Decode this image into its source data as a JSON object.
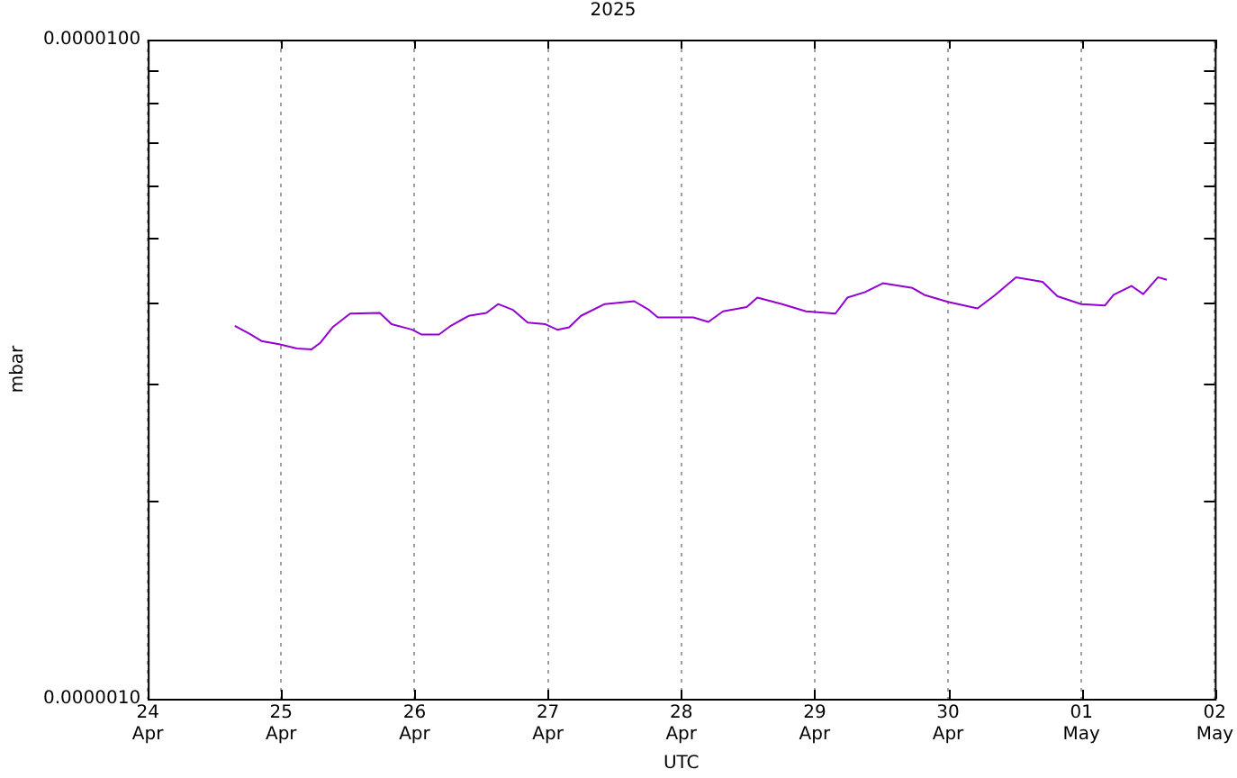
{
  "chart_data": {
    "type": "line",
    "title": "2025",
    "xlabel": "UTC",
    "ylabel": "mbar",
    "log": "y",
    "grid": "x",
    "legend": false,
    "marker": "none",
    "line_style": "solid",
    "xlim": [
      "2025-04-24",
      "2025-05-02"
    ],
    "xticks": [
      {
        "value": "2025-04-24",
        "label": "24\nApr"
      },
      {
        "value": "2025-04-25",
        "label": "25\nApr"
      },
      {
        "value": "2025-04-26",
        "label": "26\nApr"
      },
      {
        "value": "2025-04-27",
        "label": "27\nApr"
      },
      {
        "value": "2025-04-28",
        "label": "28\nApr"
      },
      {
        "value": "2025-04-29",
        "label": "29\nApr"
      },
      {
        "value": "2025-04-30",
        "label": "30\nApr"
      },
      {
        "value": "2025-05-01",
        "label": "01\nMay"
      },
      {
        "value": "2025-05-02",
        "label": "02\nMay"
      }
    ],
    "ylim": [
      1e-06,
      1e-05
    ],
    "yticks": [
      {
        "value": 1e-06,
        "label": "0.0000010"
      },
      {
        "value": 2e-06,
        "label": null
      },
      {
        "value": 3e-06,
        "label": null
      },
      {
        "value": 4e-06,
        "label": null
      },
      {
        "value": 5e-06,
        "label": null
      },
      {
        "value": 6e-06,
        "label": null
      },
      {
        "value": 7e-06,
        "label": null
      },
      {
        "value": 8e-06,
        "label": null
      },
      {
        "value": 9e-06,
        "label": null
      },
      {
        "value": 1e-05,
        "label": "0.0000100"
      }
    ],
    "x": [
      "2025-04-24T15:39",
      "2025-04-24T18:18",
      "2025-04-24T20:27",
      "2025-04-24T23:38",
      "2025-04-25T02:50",
      "2025-04-25T05:29",
      "2025-04-25T07:05",
      "2025-04-25T09:14",
      "2025-04-25T12:25",
      "2025-04-25T17:45",
      "2025-04-25T19:52",
      "2025-04-25T23:36",
      "2025-04-26T01:12",
      "2025-04-26T04:24",
      "2025-04-26T06:32",
      "2025-04-26T09:44",
      "2025-04-26T12:56",
      "2025-04-26T15:02",
      "2025-04-26T17:43",
      "2025-04-26T20:22",
      "2025-04-26T23:34",
      "2025-04-27T01:42",
      "2025-04-27T03:49",
      "2025-04-27T05:57",
      "2025-04-27T10:13",
      "2025-04-27T15:32",
      "2025-04-27T18:11",
      "2025-04-27T19:47",
      "2025-04-28T02:11",
      "2025-04-28T04:52",
      "2025-04-28T07:31",
      "2025-04-28T11:46",
      "2025-04-28T13:41",
      "2025-04-28T18:09",
      "2025-04-28T22:26",
      "2025-04-29T03:44",
      "2025-04-29T05:53",
      "2025-04-29T09:04",
      "2025-04-29T12:16",
      "2025-04-29T17:36",
      "2025-04-29T19:43",
      "2025-04-29T23:59",
      "2025-04-30T05:18",
      "2025-04-30T08:30",
      "2025-04-30T12:14",
      "2025-04-30T17:01",
      "2025-04-30T19:41",
      "2025-04-30T23:58",
      "2025-05-01T04:13",
      "2025-05-01T05:48",
      "2025-05-01T09:00",
      "2025-05-01T11:08",
      "2025-05-01T13:47",
      "2025-05-01T15:23"
    ],
    "series": [
      {
        "color": "#9400d3",
        "values": [
          3.68e-06,
          3.58e-06,
          3.49e-06,
          3.45e-06,
          3.4e-06,
          3.39e-06,
          3.47e-06,
          3.66e-06,
          3.84e-06,
          3.85e-06,
          3.7e-06,
          3.63e-06,
          3.57e-06,
          3.57e-06,
          3.68e-06,
          3.81e-06,
          3.85e-06,
          3.97e-06,
          3.89e-06,
          3.72e-06,
          3.7e-06,
          3.63e-06,
          3.66e-06,
          3.81e-06,
          3.97e-06,
          4.01e-06,
          3.89e-06,
          3.79e-06,
          3.79e-06,
          3.73e-06,
          3.87e-06,
          3.93e-06,
          4.06e-06,
          3.97e-06,
          3.87e-06,
          3.84e-06,
          4.06e-06,
          4.14e-06,
          4.27e-06,
          4.2e-06,
          4.1e-06,
          4e-06,
          3.91e-06,
          4.1e-06,
          4.36e-06,
          4.29e-06,
          4.08e-06,
          3.97e-06,
          3.95e-06,
          4.1e-06,
          4.23e-06,
          4.11e-06,
          4.36e-06,
          4.32e-06
        ]
      }
    ]
  }
}
